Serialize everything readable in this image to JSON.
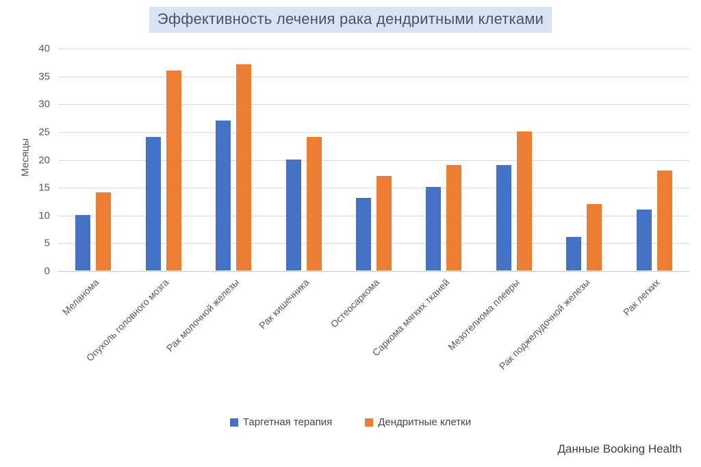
{
  "chart_data": {
    "type": "bar",
    "title": "Эффективность лечения рака дендритными клетками",
    "xlabel": "",
    "ylabel": "Месяцы",
    "ylim": [
      0,
      40
    ],
    "ytick_step": 5,
    "grid": true,
    "legend_position": "bottom",
    "categories": [
      "Меланома",
      "Опухоль головного мозга",
      "Рак молочной железы",
      "Рак кишечника",
      "Остеосаркома",
      "Саркома мягких тканей",
      "Мезотелиома плевры",
      "Рак поджелудочной железы",
      "Рак легких"
    ],
    "series": [
      {
        "name": "Таргетная терапия",
        "color": "#4472C4",
        "values": [
          10,
          24,
          27,
          20,
          13,
          15,
          19,
          6,
          11
        ]
      },
      {
        "name": "Дендритные клетки",
        "color": "#ED7D31",
        "values": [
          14,
          36,
          37,
          24,
          17,
          19,
          25,
          12,
          18
        ]
      }
    ]
  },
  "footer": {
    "source": "Данные Booking Health"
  },
  "colors": {
    "series_blue": "#4472C4",
    "series_orange": "#ED7D31",
    "title_background": "#dae3f1",
    "title_text": "#44546A",
    "axis_text": "#595959",
    "gridline": "#D9D9D9"
  }
}
